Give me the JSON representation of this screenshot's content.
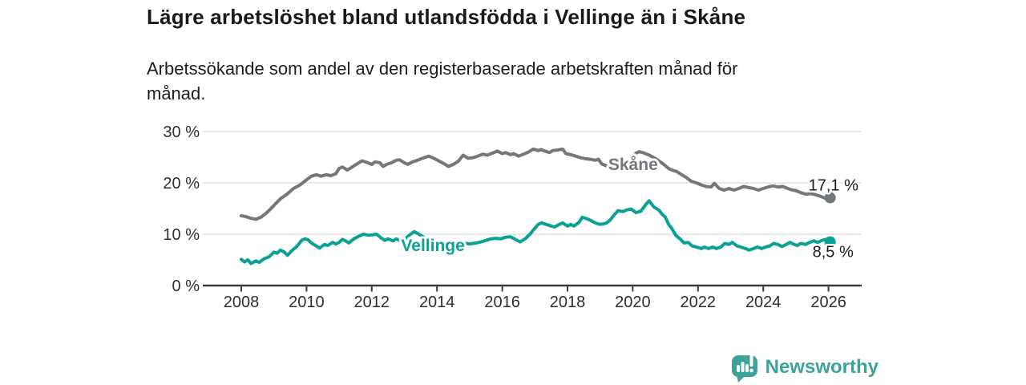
{
  "header": {
    "title": "Lägre arbetslöshet bland utlandsfödda i Vellinge än i Skåne",
    "subtitle": "Arbetssökande som andel av den registerbaserade arbetskraften månad för\nmånad."
  },
  "footer": {
    "brand": "Newsworthy",
    "brand_color": "#3da29a",
    "logo_icon": "bar-chart-speech-bubble-icon"
  },
  "chart_data": {
    "type": "line",
    "title": "Lägre arbetslöshet bland utlandsfödda i Vellinge än i Skåne",
    "subtitle": "Arbetssökande som andel av den registerbaserade arbetskraften månad för månad.",
    "xlabel": "",
    "ylabel": "",
    "xlim": [
      2006.85,
      2027.05
    ],
    "ylim": [
      0,
      31
    ],
    "grid": "horizontal",
    "legend_position": "inline-labels",
    "x_ticks": [
      2008,
      2010,
      2012,
      2014,
      2016,
      2018,
      2020,
      2022,
      2024,
      2026
    ],
    "y_ticks": [
      {
        "value": 0,
        "label": "0 %"
      },
      {
        "value": 10,
        "label": "10 %"
      },
      {
        "value": 20,
        "label": "20 %"
      },
      {
        "value": 30,
        "label": "30 %"
      }
    ],
    "axis_color": "#3a3a3a",
    "grid_color": "#dcdcdc",
    "tick_label_color": "#2f2f2f",
    "end_label_color": "#1a1a1a",
    "series": [
      {
        "name": "Skåne",
        "color": "#74777c",
        "end_label": "17,1 %",
        "end_value": 17.1,
        "label_anchor": {
          "year": 2019.25,
          "pct": 22.5
        },
        "points": [
          [
            2008.0,
            13.6
          ],
          [
            2008.15,
            13.4
          ],
          [
            2008.3,
            13.1
          ],
          [
            2008.45,
            12.9
          ],
          [
            2008.6,
            13.3
          ],
          [
            2008.8,
            14.3
          ],
          [
            2009.0,
            15.6
          ],
          [
            2009.2,
            16.9
          ],
          [
            2009.4,
            17.8
          ],
          [
            2009.6,
            18.9
          ],
          [
            2009.8,
            19.6
          ],
          [
            2010.0,
            20.6
          ],
          [
            2010.15,
            21.3
          ],
          [
            2010.3,
            21.6
          ],
          [
            2010.45,
            21.3
          ],
          [
            2010.6,
            21.6
          ],
          [
            2010.75,
            21.4
          ],
          [
            2010.9,
            21.8
          ],
          [
            2011.0,
            22.8
          ],
          [
            2011.1,
            23.1
          ],
          [
            2011.25,
            22.5
          ],
          [
            2011.4,
            23.1
          ],
          [
            2011.55,
            23.7
          ],
          [
            2011.7,
            24.3
          ],
          [
            2011.85,
            24.0
          ],
          [
            2012.0,
            23.6
          ],
          [
            2012.1,
            24.1
          ],
          [
            2012.25,
            23.9
          ],
          [
            2012.35,
            23.2
          ],
          [
            2012.45,
            23.6
          ],
          [
            2012.6,
            23.9
          ],
          [
            2012.75,
            24.4
          ],
          [
            2012.85,
            24.5
          ],
          [
            2013.0,
            23.9
          ],
          [
            2013.1,
            23.6
          ],
          [
            2013.25,
            24.1
          ],
          [
            2013.4,
            24.4
          ],
          [
            2013.55,
            24.8
          ],
          [
            2013.75,
            25.2
          ],
          [
            2013.9,
            24.8
          ],
          [
            2014.05,
            24.3
          ],
          [
            2014.2,
            23.8
          ],
          [
            2014.35,
            23.2
          ],
          [
            2014.5,
            23.6
          ],
          [
            2014.65,
            24.2
          ],
          [
            2014.8,
            25.4
          ],
          [
            2014.95,
            24.8
          ],
          [
            2015.1,
            24.9
          ],
          [
            2015.25,
            25.2
          ],
          [
            2015.4,
            25.6
          ],
          [
            2015.55,
            25.4
          ],
          [
            2015.7,
            25.8
          ],
          [
            2015.85,
            26.2
          ],
          [
            2016.0,
            25.7
          ],
          [
            2016.1,
            25.9
          ],
          [
            2016.25,
            25.5
          ],
          [
            2016.35,
            25.7
          ],
          [
            2016.5,
            25.2
          ],
          [
            2016.65,
            25.6
          ],
          [
            2016.8,
            26.0
          ],
          [
            2016.95,
            26.6
          ],
          [
            2017.1,
            26.3
          ],
          [
            2017.2,
            26.5
          ],
          [
            2017.3,
            26.2
          ],
          [
            2017.45,
            25.9
          ],
          [
            2017.55,
            26.3
          ],
          [
            2017.7,
            26.4
          ],
          [
            2017.85,
            26.6
          ],
          [
            2017.95,
            25.7
          ],
          [
            2018.1,
            25.5
          ],
          [
            2018.25,
            25.2
          ],
          [
            2018.4,
            24.9
          ],
          [
            2018.55,
            24.7
          ],
          [
            2018.7,
            24.6
          ],
          [
            2018.85,
            24.4
          ],
          [
            2018.95,
            24.6
          ],
          [
            2019.05,
            23.7
          ],
          [
            2019.2,
            23.3
          ],
          [
            2019.35,
            23.0
          ],
          [
            2019.5,
            22.7
          ],
          [
            2019.65,
            22.5
          ],
          [
            2019.8,
            23.4
          ],
          [
            2019.95,
            24.8
          ],
          [
            2020.1,
            25.8
          ],
          [
            2020.2,
            26.1
          ],
          [
            2020.35,
            25.8
          ],
          [
            2020.5,
            25.4
          ],
          [
            2020.65,
            24.9
          ],
          [
            2020.8,
            24.3
          ],
          [
            2020.95,
            23.6
          ],
          [
            2021.1,
            22.8
          ],
          [
            2021.2,
            22.5
          ],
          [
            2021.35,
            22.2
          ],
          [
            2021.5,
            21.6
          ],
          [
            2021.65,
            21.0
          ],
          [
            2021.8,
            20.3
          ],
          [
            2021.95,
            20.0
          ],
          [
            2022.1,
            19.6
          ],
          [
            2022.25,
            19.3
          ],
          [
            2022.4,
            19.2
          ],
          [
            2022.5,
            19.9
          ],
          [
            2022.65,
            18.9
          ],
          [
            2022.8,
            18.6
          ],
          [
            2022.95,
            18.9
          ],
          [
            2023.1,
            18.6
          ],
          [
            2023.25,
            18.9
          ],
          [
            2023.4,
            19.3
          ],
          [
            2023.55,
            19.1
          ],
          [
            2023.7,
            18.9
          ],
          [
            2023.85,
            18.6
          ],
          [
            2024.0,
            18.9
          ],
          [
            2024.15,
            19.2
          ],
          [
            2024.3,
            19.4
          ],
          [
            2024.45,
            19.2
          ],
          [
            2024.6,
            19.3
          ],
          [
            2024.75,
            18.9
          ],
          [
            2024.9,
            18.6
          ],
          [
            2025.0,
            18.5
          ],
          [
            2025.15,
            18.1
          ],
          [
            2025.3,
            17.8
          ],
          [
            2025.45,
            17.9
          ],
          [
            2025.6,
            17.7
          ],
          [
            2025.75,
            17.4
          ],
          [
            2025.9,
            17.0
          ],
          [
            2026.05,
            17.1
          ]
        ]
      },
      {
        "name": "Vellinge",
        "color": "#0ba194",
        "end_label": "8,5 %",
        "end_value": 8.5,
        "label_anchor": {
          "year": 2012.9,
          "pct": 6.7
        },
        "points": [
          [
            2008.0,
            5.1
          ],
          [
            2008.1,
            4.6
          ],
          [
            2008.2,
            5.0
          ],
          [
            2008.3,
            4.3
          ],
          [
            2008.45,
            4.8
          ],
          [
            2008.55,
            4.5
          ],
          [
            2008.7,
            5.2
          ],
          [
            2008.85,
            5.6
          ],
          [
            2009.0,
            6.5
          ],
          [
            2009.1,
            6.3
          ],
          [
            2009.2,
            6.9
          ],
          [
            2009.3,
            6.6
          ],
          [
            2009.42,
            5.9
          ],
          [
            2009.55,
            6.8
          ],
          [
            2009.7,
            7.6
          ],
          [
            2009.85,
            8.8
          ],
          [
            2009.95,
            9.1
          ],
          [
            2010.05,
            8.9
          ],
          [
            2010.15,
            8.3
          ],
          [
            2010.3,
            7.7
          ],
          [
            2010.4,
            7.3
          ],
          [
            2010.55,
            8.0
          ],
          [
            2010.65,
            7.8
          ],
          [
            2010.8,
            8.4
          ],
          [
            2010.9,
            8.1
          ],
          [
            2011.0,
            8.4
          ],
          [
            2011.1,
            9.0
          ],
          [
            2011.2,
            8.7
          ],
          [
            2011.3,
            8.3
          ],
          [
            2011.45,
            9.1
          ],
          [
            2011.6,
            9.6
          ],
          [
            2011.75,
            10.0
          ],
          [
            2011.9,
            9.8
          ],
          [
            2012.05,
            9.9
          ],
          [
            2012.15,
            10.0
          ],
          [
            2012.3,
            9.2
          ],
          [
            2012.4,
            8.8
          ],
          [
            2012.5,
            9.1
          ],
          [
            2012.65,
            8.7
          ],
          [
            2012.75,
            9.1
          ],
          [
            2012.9,
            8.7
          ],
          [
            2013.0,
            8.9
          ],
          [
            2013.15,
            9.8
          ],
          [
            2013.3,
            10.5
          ],
          [
            2013.42,
            10.1
          ],
          [
            2013.55,
            9.6
          ],
          [
            2013.7,
            9.0
          ],
          [
            2013.85,
            8.7
          ],
          [
            2014.0,
            8.6
          ],
          [
            2014.2,
            8.3
          ],
          [
            2014.4,
            8.5
          ],
          [
            2014.6,
            8.1
          ],
          [
            2014.8,
            8.3
          ],
          [
            2015.0,
            8.1
          ],
          [
            2015.2,
            8.3
          ],
          [
            2015.35,
            8.5
          ],
          [
            2015.5,
            8.8
          ],
          [
            2015.65,
            9.1
          ],
          [
            2015.8,
            9.2
          ],
          [
            2015.95,
            9.1
          ],
          [
            2016.1,
            9.4
          ],
          [
            2016.25,
            9.5
          ],
          [
            2016.4,
            9.0
          ],
          [
            2016.55,
            8.5
          ],
          [
            2016.7,
            9.1
          ],
          [
            2016.85,
            10.0
          ],
          [
            2016.95,
            10.8
          ],
          [
            2017.1,
            11.9
          ],
          [
            2017.2,
            12.2
          ],
          [
            2017.35,
            11.9
          ],
          [
            2017.5,
            11.6
          ],
          [
            2017.6,
            11.4
          ],
          [
            2017.75,
            11.9
          ],
          [
            2017.85,
            12.2
          ],
          [
            2018.0,
            11.6
          ],
          [
            2018.1,
            11.9
          ],
          [
            2018.2,
            11.6
          ],
          [
            2018.35,
            12.3
          ],
          [
            2018.45,
            13.3
          ],
          [
            2018.6,
            13.0
          ],
          [
            2018.7,
            12.7
          ],
          [
            2018.85,
            12.2
          ],
          [
            2019.0,
            11.9
          ],
          [
            2019.1,
            12.0
          ],
          [
            2019.2,
            12.2
          ],
          [
            2019.3,
            12.7
          ],
          [
            2019.45,
            13.9
          ],
          [
            2019.55,
            14.6
          ],
          [
            2019.7,
            14.4
          ],
          [
            2019.8,
            14.7
          ],
          [
            2019.95,
            14.9
          ],
          [
            2020.1,
            14.2
          ],
          [
            2020.25,
            14.5
          ],
          [
            2020.4,
            15.8
          ],
          [
            2020.5,
            16.5
          ],
          [
            2020.65,
            15.3
          ],
          [
            2020.8,
            14.7
          ],
          [
            2020.9,
            13.9
          ],
          [
            2021.0,
            13.3
          ],
          [
            2021.1,
            11.9
          ],
          [
            2021.2,
            11.1
          ],
          [
            2021.32,
            9.8
          ],
          [
            2021.45,
            9.1
          ],
          [
            2021.57,
            8.3
          ],
          [
            2021.7,
            8.4
          ],
          [
            2021.82,
            7.7
          ],
          [
            2021.95,
            7.5
          ],
          [
            2022.1,
            7.2
          ],
          [
            2022.2,
            7.5
          ],
          [
            2022.32,
            7.2
          ],
          [
            2022.45,
            7.5
          ],
          [
            2022.57,
            7.2
          ],
          [
            2022.7,
            7.5
          ],
          [
            2022.82,
            8.2
          ],
          [
            2022.95,
            8.0
          ],
          [
            2023.05,
            8.4
          ],
          [
            2023.2,
            7.7
          ],
          [
            2023.32,
            7.5
          ],
          [
            2023.45,
            7.2
          ],
          [
            2023.57,
            6.9
          ],
          [
            2023.7,
            7.2
          ],
          [
            2023.82,
            7.5
          ],
          [
            2023.95,
            7.2
          ],
          [
            2024.07,
            7.5
          ],
          [
            2024.2,
            7.7
          ],
          [
            2024.32,
            8.2
          ],
          [
            2024.45,
            8.0
          ],
          [
            2024.57,
            7.6
          ],
          [
            2024.7,
            8.0
          ],
          [
            2024.82,
            8.4
          ],
          [
            2024.95,
            8.0
          ],
          [
            2025.05,
            7.8
          ],
          [
            2025.15,
            8.2
          ],
          [
            2025.3,
            8.0
          ],
          [
            2025.42,
            8.4
          ],
          [
            2025.55,
            8.7
          ],
          [
            2025.67,
            8.4
          ],
          [
            2025.8,
            8.8
          ],
          [
            2025.92,
            9.0
          ],
          [
            2026.05,
            8.5
          ]
        ]
      }
    ]
  }
}
